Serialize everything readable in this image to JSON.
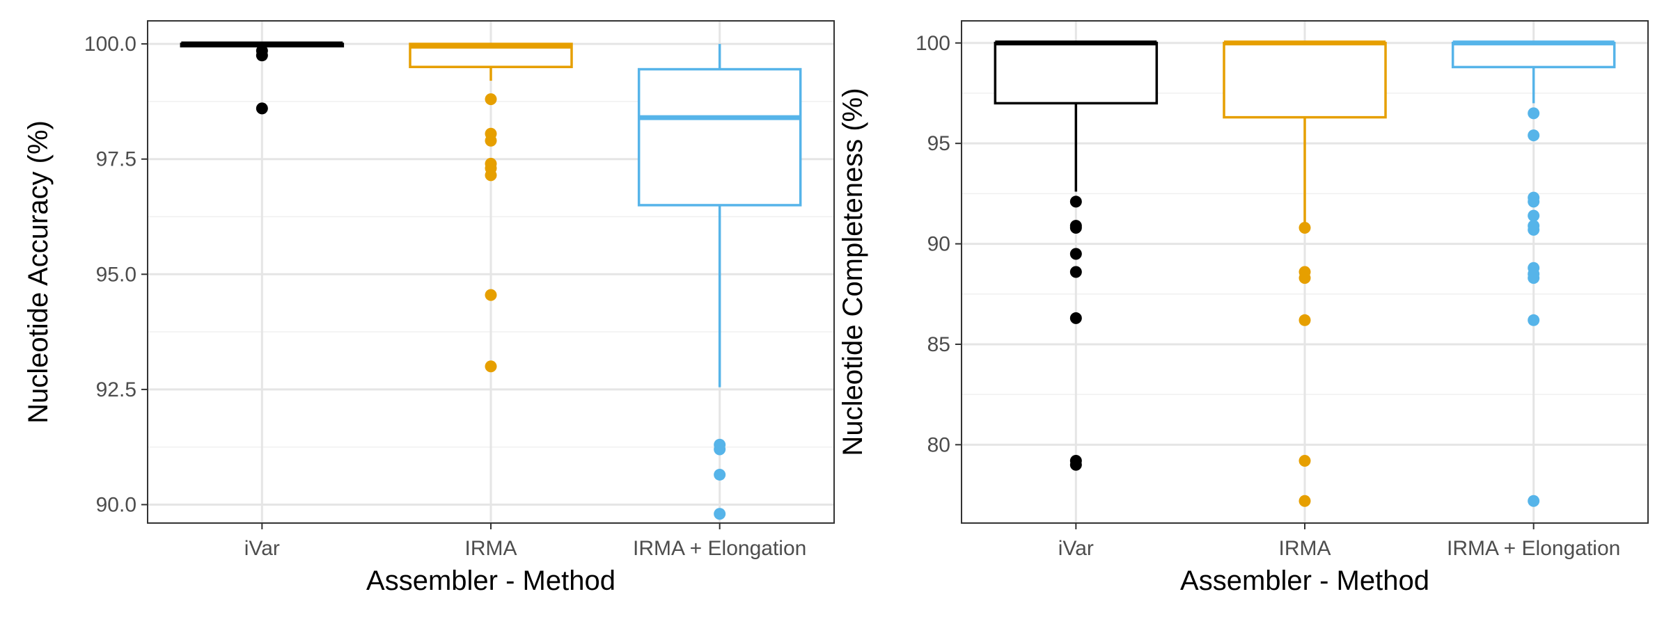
{
  "chart_data": [
    {
      "type": "box",
      "xlabel": "Assembler - Method",
      "ylabel": "Nucleotide Accuracy (%)",
      "ylim": [
        89.6,
        100.5
      ],
      "yticks": [
        90.0,
        92.5,
        95.0,
        97.5,
        100.0
      ],
      "ytick_labels": [
        "90.0",
        "92.5",
        "95.0",
        "97.5",
        "100.0"
      ],
      "categories": [
        "iVar",
        "IRMA",
        "IRMA + Elongation"
      ],
      "grid": true,
      "series": [
        {
          "category": "iVar",
          "color": "#000000",
          "q1": 99.95,
          "median": 100.0,
          "q3": 100.0,
          "whisker_low": 99.95,
          "whisker_high": 100.0,
          "outliers": [
            99.85,
            99.75,
            98.6
          ]
        },
        {
          "category": "IRMA",
          "color": "#E69F00",
          "q1": 99.5,
          "median": 99.95,
          "q3": 100.0,
          "whisker_low": 99.2,
          "whisker_high": 100.0,
          "outliers": [
            98.8,
            98.05,
            97.9,
            97.4,
            97.3,
            97.15,
            94.55,
            93.0
          ]
        },
        {
          "category": "IRMA + Elongation",
          "color": "#56B4E9",
          "q1": 96.5,
          "median": 98.4,
          "q3": 99.45,
          "whisker_low": 92.55,
          "whisker_high": 100.0,
          "outliers": [
            91.3,
            91.2,
            90.65,
            89.8
          ]
        }
      ]
    },
    {
      "type": "box",
      "xlabel": "Assembler - Method",
      "ylabel": "Nucleotide Completeness (%)",
      "ylim": [
        76.1,
        101.1
      ],
      "yticks": [
        80,
        85,
        90,
        95,
        100
      ],
      "ytick_labels": [
        "80",
        "85",
        "90",
        "95",
        "100"
      ],
      "categories": [
        "iVar",
        "IRMA",
        "IRMA + Elongation"
      ],
      "grid": true,
      "series": [
        {
          "category": "iVar",
          "color": "#000000",
          "q1": 97.0,
          "median": 100.0,
          "q3": 100.0,
          "whisker_low": 92.6,
          "whisker_high": 100.0,
          "outliers": [
            92.1,
            90.9,
            90.8,
            89.5,
            88.6,
            86.3,
            79.2,
            79.0
          ]
        },
        {
          "category": "IRMA",
          "color": "#E69F00",
          "q1": 96.3,
          "median": 100.0,
          "q3": 100.0,
          "whisker_low": 91.0,
          "whisker_high": 100.0,
          "outliers": [
            90.8,
            88.6,
            88.3,
            86.2,
            79.2,
            77.2
          ]
        },
        {
          "category": "IRMA + Elongation",
          "color": "#56B4E9",
          "q1": 98.8,
          "median": 100.0,
          "q3": 100.0,
          "whisker_low": 97.0,
          "whisker_high": 100.0,
          "outliers": [
            96.5,
            95.4,
            92.3,
            92.1,
            91.4,
            90.9,
            90.7,
            88.8,
            88.5,
            88.3,
            86.2,
            77.2
          ]
        }
      ]
    }
  ]
}
